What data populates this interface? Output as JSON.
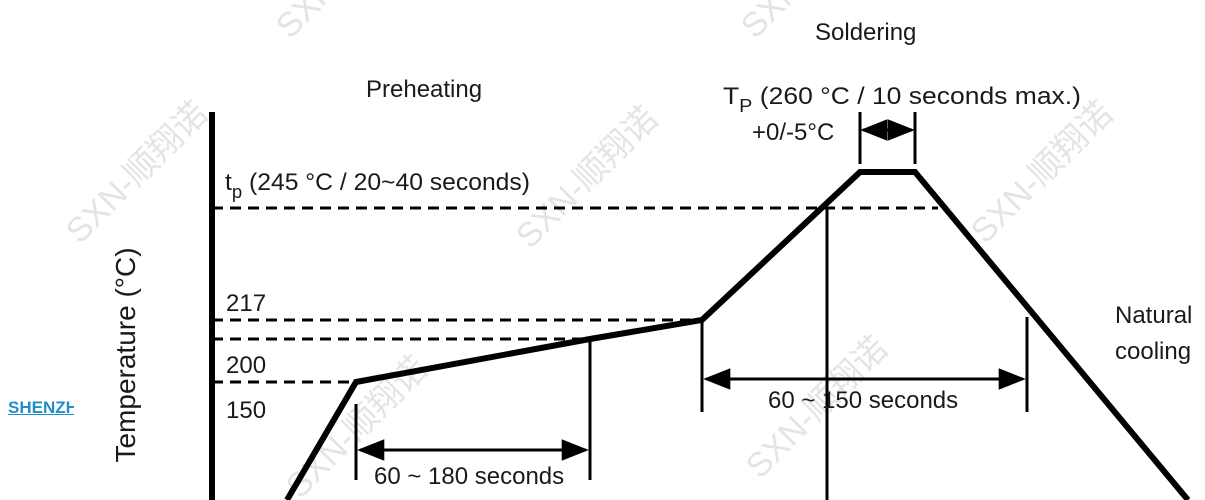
{
  "phases": {
    "soldering": "Soldering",
    "preheating": "Preheating",
    "cooling_line1": "Natural",
    "cooling_line2": "cooling"
  },
  "axis": {
    "ylabel": "Temperature (°C)"
  },
  "ticks": {
    "t217": "217",
    "t200": "200",
    "t150": "150"
  },
  "peak": {
    "symbol": "T",
    "sub": "P",
    "text": " (260 °C / 10 seconds max.)",
    "tolerance": "+0/-5°C"
  },
  "tp": {
    "symbol": "t",
    "sub": "p",
    "text": " (245 °C / 20~40 seconds)"
  },
  "durations": {
    "preheat": "60 ~ 180 seconds",
    "reflow": "60 ~ 150 seconds"
  },
  "side_link": "SHENZHEN",
  "watermark": "SXN-顺翔诺",
  "colors": {
    "line": "#000000",
    "watermark": "#cfcfcf",
    "link": "#1f8fc7"
  }
}
